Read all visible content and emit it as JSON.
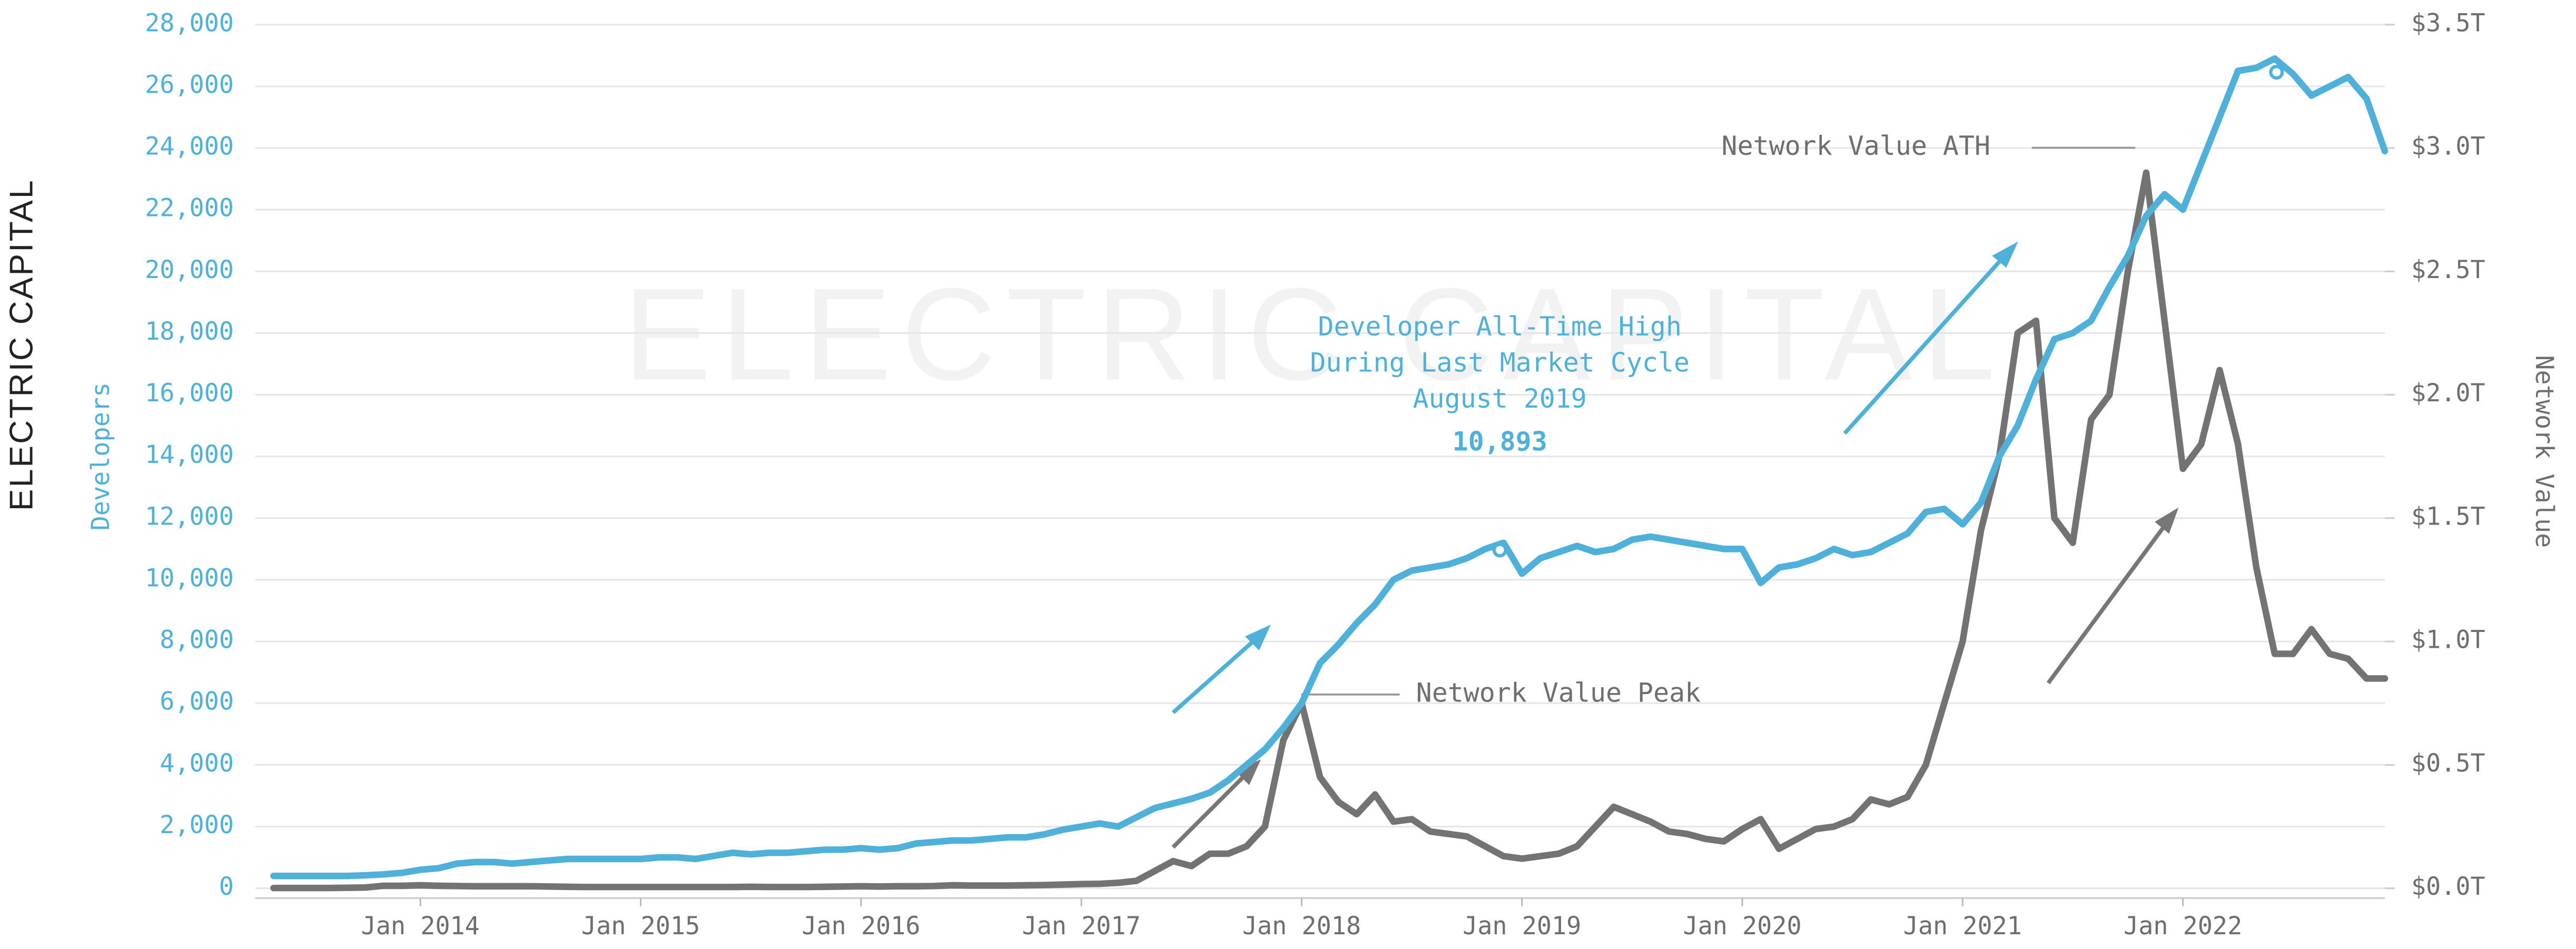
{
  "chart_data": {
    "type": "line",
    "logo": "ELECTRIC CAPITAL",
    "watermark": "ELECTRIC CAPITAL",
    "ylabel": "Developers",
    "y2label": "Network Value",
    "annotations": [
      "Network Value ATH",
      "Developer All-Time High",
      "During Last Market Cycle",
      "August 2019",
      "10,893",
      "Network Value Peak"
    ],
    "xlim": [
      "2013-04",
      "2022-12"
    ],
    "xticks": [
      {
        "value": "2014-01",
        "label": "Jan 2014"
      },
      {
        "value": "2015-01",
        "label": "Jan 2015"
      },
      {
        "value": "2016-01",
        "label": "Jan 2016"
      },
      {
        "value": "2017-01",
        "label": "Jan 2017"
      },
      {
        "value": "2018-01",
        "label": "Jan 2018"
      },
      {
        "value": "2019-01",
        "label": "Jan 2019"
      },
      {
        "value": "2020-01",
        "label": "Jan 2020"
      },
      {
        "value": "2021-01",
        "label": "Jan 2021"
      },
      {
        "value": "2022-01",
        "label": "Jan 2022"
      }
    ],
    "ylim": [
      0,
      28000
    ],
    "yticks": [
      0,
      {
        "value": 2000,
        "label": "2,000"
      },
      {
        "value": 4000,
        "label": "4,000"
      },
      {
        "value": 6000,
        "label": "6,000"
      },
      {
        "value": 8000,
        "label": "8,000"
      },
      {
        "value": 10000,
        "label": "10,000"
      },
      {
        "value": 12000,
        "label": "12,000"
      },
      {
        "value": 14000,
        "label": "14,000"
      },
      {
        "value": 16000,
        "label": "16,000"
      },
      {
        "value": 18000,
        "label": "18,000"
      },
      {
        "value": 20000,
        "label": "20,000"
      },
      {
        "value": 22000,
        "label": "22,000"
      },
      {
        "value": 24000,
        "label": "24,000"
      },
      {
        "value": 26000,
        "label": "26,000"
      },
      {
        "value": 28000,
        "label": "28,000"
      }
    ],
    "y2lim": [
      0,
      3.5
    ],
    "y2ticks": [
      {
        "value": 0,
        "label": "$0.0T"
      },
      {
        "value": 0.5,
        "label": "$0.5T"
      },
      {
        "value": 1,
        "label": "$1.0T"
      },
      {
        "value": 1.5,
        "label": "$1.5T"
      },
      {
        "value": 2,
        "label": "$2.0T"
      },
      {
        "value": 2.5,
        "label": "$2.5T"
      },
      {
        "value": 3,
        "label": "$3.0T"
      },
      {
        "value": 3.5,
        "label": "$3.5T"
      }
    ],
    "grid": true,
    "x": [
      "2013-05",
      "2013-06",
      "2013-07",
      "2013-08",
      "2013-09",
      "2013-10",
      "2013-11",
      "2013-12",
      "2014-01",
      "2014-02",
      "2014-03",
      "2014-04",
      "2014-05",
      "2014-06",
      "2014-07",
      "2014-08",
      "2014-09",
      "2014-10",
      "2014-11",
      "2014-12",
      "2015-01",
      "2015-02",
      "2015-03",
      "2015-04",
      "2015-05",
      "2015-06",
      "2015-07",
      "2015-08",
      "2015-09",
      "2015-10",
      "2015-11",
      "2015-12",
      "2016-01",
      "2016-02",
      "2016-03",
      "2016-04",
      "2016-05",
      "2016-06",
      "2016-07",
      "2016-08",
      "2016-09",
      "2016-10",
      "2016-11",
      "2016-12",
      "2017-01",
      "2017-02",
      "2017-03",
      "2017-04",
      "2017-05",
      "2017-06",
      "2017-07",
      "2017-08",
      "2017-09",
      "2017-10",
      "2017-11",
      "2017-12",
      "2018-01",
      "2018-02",
      "2018-03",
      "2018-04",
      "2018-05",
      "2018-06",
      "2018-07",
      "2018-08",
      "2018-09",
      "2018-10",
      "2018-11",
      "2018-12",
      "2019-01",
      "2019-02",
      "2019-03",
      "2019-04",
      "2019-05",
      "2019-06",
      "2019-07",
      "2019-08",
      "2019-09",
      "2019-10",
      "2019-11",
      "2019-12",
      "2020-01",
      "2020-02",
      "2020-03",
      "2020-04",
      "2020-05",
      "2020-06",
      "2020-07",
      "2020-08",
      "2020-09",
      "2020-10",
      "2020-11",
      "2020-12",
      "2021-01",
      "2021-02",
      "2021-03",
      "2021-04",
      "2021-05",
      "2021-06",
      "2021-07",
      "2021-08",
      "2021-09",
      "2021-10",
      "2021-11",
      "2021-12",
      "2022-01",
      "2022-02",
      "2022-03",
      "2022-04",
      "2022-05",
      "2022-06",
      "2022-07",
      "2022-08",
      "2022-09",
      "2022-10",
      "2022-11",
      "2022-12"
    ],
    "series": [
      {
        "name": "Developers",
        "color": "#4fb0d9",
        "values": [
          400,
          400,
          400,
          400,
          400,
          420,
          450,
          500,
          600,
          650,
          800,
          850,
          850,
          800,
          850,
          900,
          950,
          950,
          950,
          950,
          950,
          1000,
          1000,
          950,
          1050,
          1150,
          1100,
          1150,
          1150,
          1200,
          1250,
          1250,
          1300,
          1250,
          1300,
          1450,
          1500,
          1550,
          1550,
          1600,
          1650,
          1650,
          1750,
          1900,
          2000,
          2100,
          2000,
          2300,
          2600,
          2750,
          2900,
          3100,
          3500,
          4000,
          4500,
          5200,
          6000,
          7300,
          7900,
          8600,
          9200,
          10000,
          10300,
          10400,
          10500,
          10700,
          11000,
          11200,
          10200,
          10700,
          10900,
          11100,
          10900,
          11000,
          11300,
          11400,
          11300,
          11200,
          11100,
          11000,
          11000,
          9900,
          10400,
          10500,
          10700,
          11000,
          10800,
          10900,
          11200,
          11500,
          12200,
          12300,
          11800,
          12500,
          14000,
          15000,
          16500,
          17800,
          18000,
          18400,
          19500,
          20500,
          21800,
          22500,
          22000,
          23500,
          25000,
          26500,
          26600,
          26900,
          26400,
          25700,
          26000,
          26300,
          25600,
          23900
        ]
      },
      {
        "name": "Network Value",
        "color": "#737373",
        "axis": "y2",
        "values": [
          0.001,
          0.001,
          0.001,
          0.001,
          0.002,
          0.003,
          0.01,
          0.01,
          0.012,
          0.01,
          0.009,
          0.008,
          0.008,
          0.008,
          0.008,
          0.007,
          0.006,
          0.005,
          0.005,
          0.005,
          0.005,
          0.005,
          0.005,
          0.005,
          0.005,
          0.005,
          0.006,
          0.005,
          0.005,
          0.005,
          0.006,
          0.007,
          0.008,
          0.007,
          0.008,
          0.008,
          0.009,
          0.012,
          0.011,
          0.011,
          0.011,
          0.012,
          0.013,
          0.015,
          0.017,
          0.018,
          0.022,
          0.03,
          0.07,
          0.11,
          0.09,
          0.14,
          0.14,
          0.17,
          0.25,
          0.6,
          0.75,
          0.45,
          0.35,
          0.3,
          0.38,
          0.27,
          0.28,
          0.23,
          0.22,
          0.21,
          0.17,
          0.13,
          0.12,
          0.13,
          0.14,
          0.17,
          0.25,
          0.33,
          0.3,
          0.27,
          0.23,
          0.22,
          0.2,
          0.19,
          0.24,
          0.28,
          0.16,
          0.2,
          0.24,
          0.25,
          0.28,
          0.36,
          0.34,
          0.37,
          0.5,
          0.75,
          1.0,
          1.45,
          1.75,
          2.25,
          2.3,
          1.5,
          1.4,
          1.9,
          2.0,
          2.5,
          2.9,
          2.3,
          1.7,
          1.8,
          2.1,
          1.8,
          1.3,
          0.95,
          0.95,
          1.05,
          0.95,
          0.93,
          0.85,
          0.85
        ]
      }
    ]
  }
}
